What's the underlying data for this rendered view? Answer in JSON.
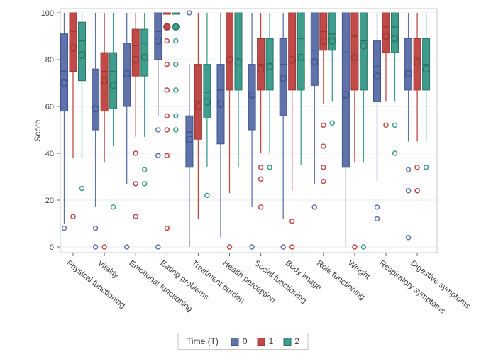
{
  "chart_data": {
    "type": "box",
    "title": "",
    "ylabel": "Score",
    "ylim": [
      0,
      100
    ],
    "yticks": [
      0,
      20,
      40,
      60,
      80,
      100
    ],
    "grid": "horizontal",
    "legend": {
      "title": "Time (T)",
      "position": "bottom-center",
      "entries": [
        {
          "label": "0",
          "fill": "#5F73AA",
          "stroke": "#3E5490"
        },
        {
          "label": "1",
          "fill": "#C04A47",
          "stroke": "#993634"
        },
        {
          "label": "2",
          "fill": "#3E9D8D",
          "stroke": "#2B7465"
        }
      ]
    },
    "categories": [
      "Physical functioning",
      "Vitality",
      "Emotional functioning",
      "Eating problems",
      "Treatment burden",
      "Health perception",
      "Social functioning",
      "Body image",
      "Role functioning",
      "Weight",
      "Respiratory symptoms",
      "Digestive symptoms"
    ],
    "series": [
      {
        "name": "0",
        "fill": "#5F73AA",
        "stroke": "#3E5490",
        "boxes": [
          {
            "low": 10,
            "q1": 58,
            "med": 75,
            "q3": 91,
            "high": 100,
            "mean": 70,
            "out": [
              8
            ]
          },
          {
            "low": 17,
            "q1": 50,
            "med": 60,
            "q3": 76,
            "high": 100,
            "mean": 59,
            "out": [
              8,
              0
            ]
          },
          {
            "low": 27,
            "q1": 60,
            "med": 73,
            "q3": 87,
            "high": 100,
            "mean": 74,
            "out": [
              0
            ]
          },
          {
            "low": 56,
            "q1": 80,
            "med": 92,
            "q3": 100,
            "high": 100,
            "mean": 88,
            "out": [
              50,
              39,
              0
            ]
          },
          {
            "low": 0,
            "q1": 34,
            "med": 49,
            "q3": 56,
            "high": 78,
            "mean": 46,
            "out": [
              100
            ]
          },
          {
            "low": 4,
            "q1": 44,
            "med": 67,
            "q3": 78,
            "high": 100,
            "mean": 61,
            "out": []
          },
          {
            "low": 17,
            "q1": 50,
            "med": 64,
            "q3": 78,
            "high": 100,
            "mean": 65,
            "out": [
              0
            ]
          },
          {
            "low": 12,
            "q1": 56,
            "med": 78,
            "q3": 89,
            "high": 100,
            "mean": 72,
            "out": [
              0
            ]
          },
          {
            "low": 27,
            "q1": 69,
            "med": 84,
            "q3": 100,
            "high": 100,
            "mean": 79,
            "out": [
              17
            ]
          },
          {
            "low": 0,
            "q1": 34,
            "med": 83,
            "q3": 100,
            "high": 100,
            "mean": 65,
            "out": []
          },
          {
            "low": 28,
            "q1": 62,
            "med": 77,
            "q3": 88,
            "high": 100,
            "mean": 73,
            "out": [
              17,
              12
            ]
          },
          {
            "low": 45,
            "q1": 67,
            "med": 75,
            "q3": 89,
            "high": 100,
            "mean": 74,
            "out": [
              33,
              24,
              4
            ]
          }
        ]
      },
      {
        "name": "1",
        "fill": "#C04A47",
        "stroke": "#993634",
        "boxes": [
          {
            "low": 38,
            "q1": 75,
            "med": 92,
            "q3": 100,
            "high": 100,
            "mean": 85,
            "out": [
              13
            ]
          },
          {
            "low": 36,
            "q1": 58,
            "med": 75,
            "q3": 83,
            "high": 100,
            "mean": 71,
            "out": [
              0
            ]
          },
          {
            "low": 47,
            "q1": 73,
            "med": 86,
            "q3": 93,
            "high": 100,
            "mean": 80,
            "out": [
              40,
              27,
              13
            ]
          },
          {
            "low": 100,
            "q1": 100,
            "med": 100,
            "q3": 100,
            "high": 100,
            "mean": 94,
            "out": [
              88,
              78,
              67,
              56,
              50,
              39,
              8
            ]
          },
          {
            "low": 12,
            "q1": 46,
            "med": 62,
            "q3": 78,
            "high": 100,
            "mean": 60,
            "out": []
          },
          {
            "low": 23,
            "q1": 67,
            "med": 81,
            "q3": 100,
            "high": 100,
            "mean": 80,
            "out": [
              0
            ]
          },
          {
            "low": 40,
            "q1": 67,
            "med": 78,
            "q3": 89,
            "high": 100,
            "mean": 76,
            "out": [
              34,
              29,
              17
            ]
          },
          {
            "low": 24,
            "q1": 67,
            "med": 80,
            "q3": 100,
            "high": 100,
            "mean": 80,
            "out": [
              11,
              0
            ]
          },
          {
            "low": 61,
            "q1": 84,
            "med": 92,
            "q3": 100,
            "high": 100,
            "mean": 88,
            "out": [
              52,
              43,
              34,
              28
            ]
          },
          {
            "low": 36,
            "q1": 67,
            "med": 90,
            "q3": 100,
            "high": 100,
            "mean": 81,
            "out": [
              0
            ]
          },
          {
            "low": 62,
            "q1": 83,
            "med": 94,
            "q3": 100,
            "high": 100,
            "mean": 90,
            "out": [
              52
            ]
          },
          {
            "low": 45,
            "q1": 67,
            "med": 81,
            "q3": 89,
            "high": 100,
            "mean": 79,
            "out": [
              34,
              24
            ]
          }
        ]
      },
      {
        "name": "2",
        "fill": "#3E9D8D",
        "stroke": "#2B7465",
        "boxes": [
          {
            "low": 38,
            "q1": 71,
            "med": 88,
            "q3": 96,
            "high": 100,
            "mean": 82,
            "out": [
              25
            ]
          },
          {
            "low": 43,
            "q1": 59,
            "med": 75,
            "q3": 83,
            "high": 100,
            "mean": 69,
            "out": [
              17
            ]
          },
          {
            "low": 47,
            "q1": 73,
            "med": 87,
            "q3": 93,
            "high": 100,
            "mean": 81,
            "out": [
              33,
              27
            ]
          },
          {
            "low": 100,
            "q1": 100,
            "med": 100,
            "q3": 100,
            "high": 100,
            "mean": 94,
            "out": [
              88,
              78,
              67,
              56,
              50
            ]
          },
          {
            "low": 34,
            "q1": 55,
            "med": 66,
            "q3": 78,
            "high": 100,
            "mean": 62,
            "out": [
              22
            ]
          },
          {
            "low": 34,
            "q1": 67,
            "med": 79,
            "q3": 100,
            "high": 100,
            "mean": 79,
            "out": []
          },
          {
            "low": 40,
            "q1": 67,
            "med": 77,
            "q3": 89,
            "high": 100,
            "mean": 77,
            "out": [
              34
            ]
          },
          {
            "low": 35,
            "q1": 67,
            "med": 89,
            "q3": 100,
            "high": 100,
            "mean": 81,
            "out": []
          },
          {
            "low": 62,
            "q1": 84,
            "med": 91,
            "q3": 100,
            "high": 100,
            "mean": 88,
            "out": [
              53
            ]
          },
          {
            "low": 36,
            "q1": 67,
            "med": 88,
            "q3": 100,
            "high": 100,
            "mean": 86,
            "out": [
              0
            ]
          },
          {
            "low": 62,
            "q1": 83,
            "med": 94,
            "q3": 100,
            "high": 100,
            "mean": 89,
            "out": [
              52,
              40
            ]
          },
          {
            "low": 45,
            "q1": 67,
            "med": 78,
            "q3": 89,
            "high": 100,
            "mean": 76,
            "out": [
              34
            ]
          }
        ]
      }
    ],
    "style": {
      "frame_color": "#c9cacb",
      "grid_color": "#ebebeb",
      "tick_color": "#6a6a6a",
      "text_color": "#3f3f3f",
      "background": "#ffffff"
    }
  }
}
